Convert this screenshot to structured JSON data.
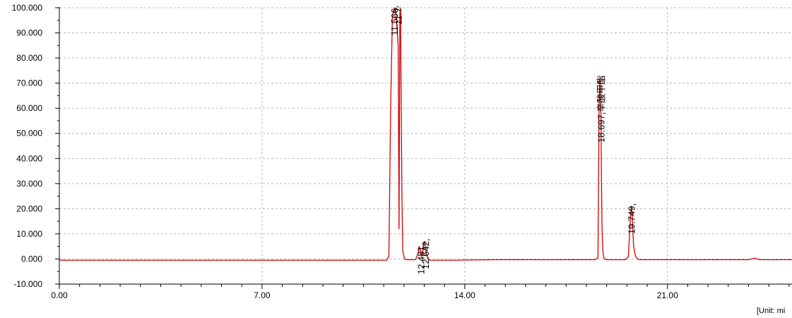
{
  "chart_data": {
    "type": "line",
    "title": "",
    "xlabel": "",
    "ylabel": "",
    "xlim": [
      0.0,
      25.3
    ],
    "ylim": [
      -10.0,
      100.0
    ],
    "grid": true,
    "x_ticks": [
      0.0,
      7.0,
      14.0,
      21.0
    ],
    "x_tick_labels": [
      "0.00",
      "7.00",
      "14.00",
      "21.00"
    ],
    "y_ticks": [
      100,
      90,
      80,
      70,
      60,
      50,
      40,
      30,
      20,
      10,
      0,
      -10
    ],
    "y_tick_labels": [
      "100.000",
      "90.000",
      "80.000",
      "70.000",
      "60.000",
      "50.000",
      "40.000",
      "30.000",
      "20.000",
      "10.000",
      "0.000",
      "-10.000"
    ],
    "unit_label": "[Unit: mi",
    "series": [
      {
        "color": "#d40000",
        "x": [
          0.0,
          11.3,
          11.38,
          11.44,
          11.5,
          11.56,
          11.62,
          11.66,
          11.7,
          11.73,
          11.76,
          11.78,
          11.8,
          11.83,
          11.86,
          11.92,
          12.0,
          12.3,
          12.38,
          12.42,
          12.46,
          12.5,
          12.54,
          12.58,
          12.62,
          12.66,
          12.72,
          12.8,
          13.5,
          15.0,
          18.5,
          18.6,
          18.64,
          18.67,
          18.7,
          18.72,
          18.74,
          18.77,
          18.8,
          18.84,
          18.9,
          19.0,
          19.3,
          19.55,
          19.65,
          19.7,
          19.749,
          19.78,
          19.83,
          19.9,
          20.0,
          20.5,
          23.8,
          24.0,
          24.2,
          24.8,
          25.3
        ],
        "y": [
          -0.5,
          -0.5,
          1,
          60,
          96,
          100,
          98,
          92,
          85,
          12,
          98,
          100,
          70,
          25,
          3,
          0,
          -0.3,
          -0.3,
          2,
          5,
          4,
          1,
          3,
          6,
          7,
          3,
          0,
          -0.5,
          -0.5,
          -0.3,
          -0.3,
          0.5,
          62,
          72,
          62,
          32,
          12,
          3,
          0.5,
          0,
          -0.3,
          -0.3,
          -0.3,
          -0.3,
          1,
          12,
          21,
          18,
          5,
          1,
          -0.3,
          -0.3,
          -0.3,
          0.3,
          -0.3,
          -0.3,
          -0.3
        ]
      }
    ],
    "peak_labels": [
      {
        "x": 11.566,
        "y": 100,
        "text": "11.566,"
      },
      {
        "x": 11.7,
        "y": 99,
        "text": "11.7"
      },
      {
        "x": 12.481,
        "y": 5,
        "text": "12.481,"
      },
      {
        "x": 12.642,
        "y": 7,
        "text": "12.642,"
      },
      {
        "x": 18.697,
        "y": 72,
        "text": "18.697,辛酸甲酯"
      },
      {
        "x": 19.749,
        "y": 21,
        "text": "19.749,"
      }
    ]
  }
}
